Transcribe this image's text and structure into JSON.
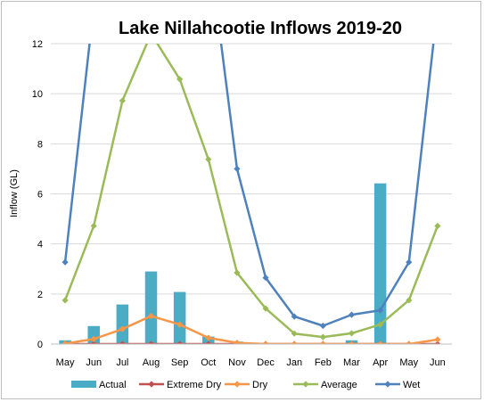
{
  "chart_data": {
    "type": "bar",
    "title": "Lake Nillahcootie Inflows 2019-20",
    "xlabel": "",
    "ylabel": "Inflow (GL)",
    "ylim": [
      0,
      12
    ],
    "yticks": [
      0,
      2,
      4,
      6,
      8,
      10,
      12
    ],
    "grid": true,
    "legend_position": "bottom",
    "categories": [
      "May",
      "Jun",
      "Jul",
      "Aug",
      "Sep",
      "Oct",
      "Nov",
      "Dec",
      "Jan",
      "Feb",
      "Mar",
      "Apr",
      "May",
      "Jun"
    ],
    "bar_series": {
      "name": "Actual",
      "color": "#4bacc6",
      "values": [
        0.15,
        0.72,
        1.58,
        2.9,
        2.08,
        0.3,
        0.1,
        null,
        null,
        null,
        0.15,
        6.42,
        null,
        null
      ]
    },
    "line_series": [
      {
        "name": "Extreme Dry",
        "color": "#c0504d",
        "values": [
          0,
          0,
          0,
          0,
          0,
          0,
          0,
          0,
          0,
          0,
          0,
          0,
          0,
          0
        ]
      },
      {
        "name": "Dry",
        "color": "#f79646",
        "values": [
          0.02,
          0.2,
          0.6,
          1.12,
          0.78,
          0.25,
          0.05,
          0,
          0,
          0,
          0,
          0,
          0,
          0.18
        ]
      },
      {
        "name": "Average",
        "color": "#9bbb59",
        "values": [
          1.75,
          4.72,
          9.72,
          12.4,
          10.58,
          7.38,
          2.85,
          1.42,
          0.42,
          0.28,
          0.43,
          0.78,
          1.75,
          4.72
        ]
      },
      {
        "name": "Wet",
        "color": "#4f81bd",
        "values": [
          3.27,
          13.5,
          20,
          22,
          20,
          16,
          7.0,
          2.65,
          1.1,
          0.73,
          1.17,
          1.35,
          3.27,
          13.5
        ]
      }
    ]
  }
}
